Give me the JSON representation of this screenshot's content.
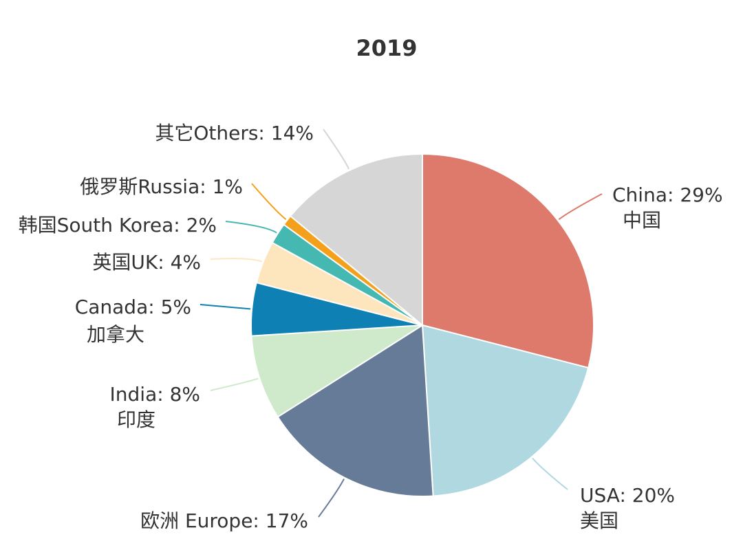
{
  "chart_data": {
    "type": "pie",
    "title": "2019",
    "start_angle_deg": 0,
    "direction": "clockwise",
    "slices": [
      {
        "label": "China: 29%",
        "sublabel": "中国",
        "value": 29,
        "color": "#dd7a6c",
        "side": "right"
      },
      {
        "label": "USA: 20%",
        "sublabel": "美国",
        "value": 20,
        "color": "#b0d8e0",
        "side": "right"
      },
      {
        "label": "欧洲 Europe: 17%",
        "sublabel": "",
        "value": 17,
        "color": "#667b97",
        "side": "left"
      },
      {
        "label": "India: 8%",
        "sublabel": "印度",
        "value": 8,
        "color": "#cfeacb",
        "side": "left"
      },
      {
        "label": "Canada: 5%",
        "sublabel": "加拿大",
        "value": 5,
        "color": "#0e80b3",
        "side": "left"
      },
      {
        "label": "英国UK: 4%",
        "sublabel": "",
        "value": 4,
        "color": "#fde5bd",
        "side": "left"
      },
      {
        "label": "韩国South Korea: 2%",
        "sublabel": "",
        "value": 2,
        "color": "#46b8b2",
        "side": "left"
      },
      {
        "label": "俄罗斯Russia: 1%",
        "sublabel": "",
        "value": 1,
        "color": "#f5a01c",
        "side": "left"
      },
      {
        "label": "其它Others: 14%",
        "sublabel": "",
        "value": 14,
        "color": "#d6d6d6",
        "side": "left"
      }
    ]
  }
}
